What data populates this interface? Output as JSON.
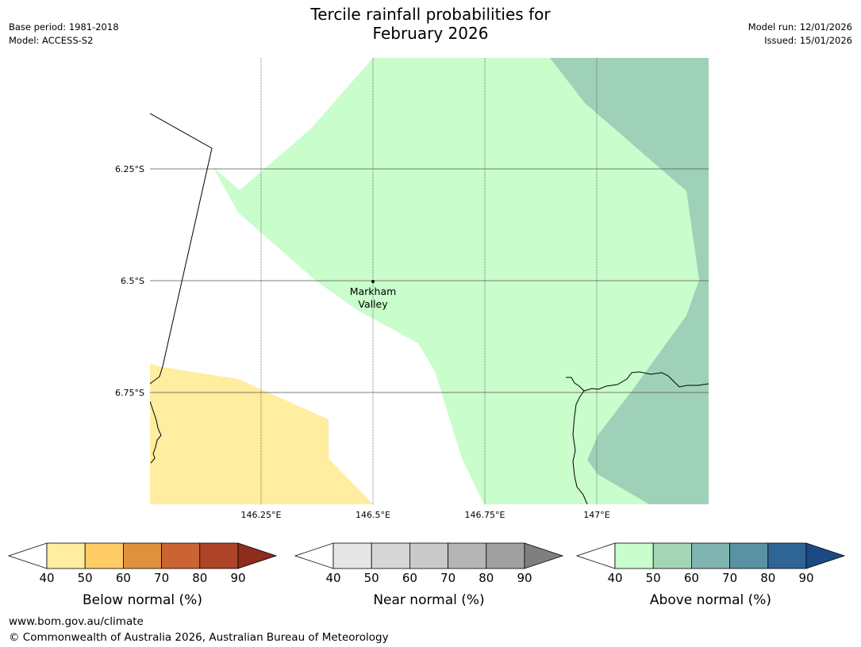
{
  "header": {
    "title_line1": "Tercile rainfall probabilities for",
    "title_line2": "February 2026",
    "base_period": "Base period: 1981-2018",
    "model": "Model: ACCESS-S2",
    "model_run": "Model run: 12/01/2026",
    "issued": "Issued: 15/01/2026"
  },
  "map": {
    "lat_labels": [
      "6.25°S",
      "6.5°S",
      "6.75°S"
    ],
    "lon_labels": [
      "146.25°E",
      "146.5°E",
      "146.75°E",
      "147°E"
    ],
    "place": {
      "name_line1": "Markham",
      "name_line2": "Valley"
    },
    "colors": {
      "below_40_50": "#ffeda0",
      "above_40_50": "#c9fdcb",
      "above_50_60": "#9fd1b9",
      "coastline": "#000000",
      "gridline": "#555555"
    }
  },
  "legends": [
    {
      "label": "Below normal (%)",
      "ticks": [
        "40",
        "50",
        "60",
        "70",
        "80",
        "90"
      ],
      "colors": [
        "#ffeda0",
        "#fecb65",
        "#e0913e",
        "#cc6332",
        "#ae4428",
        "#8c2d1d"
      ]
    },
    {
      "label": "Near normal (%)",
      "ticks": [
        "40",
        "50",
        "60",
        "70",
        "80",
        "90"
      ],
      "colors": [
        "#e6e6e6",
        "#d7d7d7",
        "#c9c9c9",
        "#b5b5b5",
        "#a0a0a0",
        "#7f7f7f"
      ]
    },
    {
      "label": "Above normal (%)",
      "ticks": [
        "40",
        "50",
        "60",
        "70",
        "80",
        "90"
      ],
      "colors": [
        "#c9fdcb",
        "#a4d6b5",
        "#7fb4b0",
        "#5a92a2",
        "#2f6496",
        "#1a4a82"
      ]
    }
  ],
  "footer": {
    "url": "www.bom.gov.au/climate",
    "copyright": "© Commonwealth of Australia 2026, Australian Bureau of Meteorology"
  }
}
